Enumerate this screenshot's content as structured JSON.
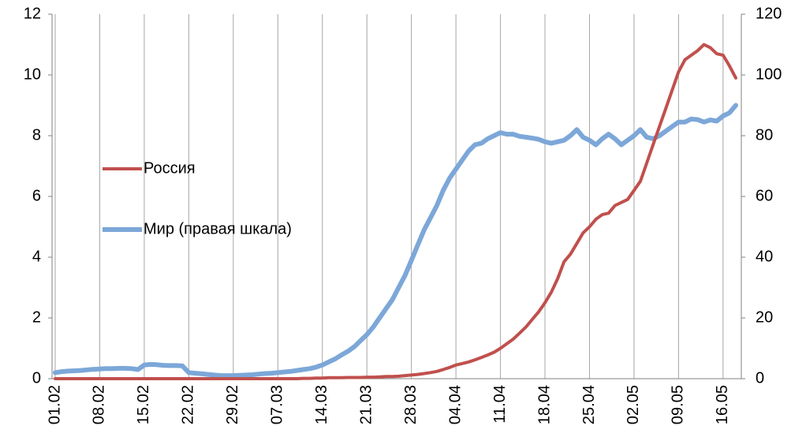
{
  "chart_data": {
    "type": "line",
    "categories": [
      "01.02",
      null,
      null,
      null,
      null,
      null,
      null,
      "08.02",
      null,
      null,
      null,
      null,
      null,
      null,
      "15.02",
      null,
      null,
      null,
      null,
      null,
      null,
      "22.02",
      null,
      null,
      null,
      null,
      null,
      null,
      "29.02",
      null,
      null,
      null,
      null,
      null,
      null,
      "07.03",
      null,
      null,
      null,
      null,
      null,
      null,
      "14.03",
      null,
      null,
      null,
      null,
      null,
      null,
      "21.03",
      null,
      null,
      null,
      null,
      null,
      null,
      "28.03",
      null,
      null,
      null,
      null,
      null,
      null,
      "04.04",
      null,
      null,
      null,
      null,
      null,
      null,
      "11.04",
      null,
      null,
      null,
      null,
      null,
      null,
      "18.04",
      null,
      null,
      null,
      null,
      null,
      null,
      "25.04",
      null,
      null,
      null,
      null,
      null,
      null,
      "02.05",
      null,
      null,
      null,
      null,
      null,
      null,
      "09.05",
      null,
      null,
      null,
      null,
      null,
      null,
      "16.05",
      null,
      null
    ],
    "series": [
      {
        "name": "Россия",
        "color": "#c0504d",
        "axis": "y",
        "values": [
          0,
          0,
          0,
          0,
          0,
          0,
          0,
          0,
          0,
          0,
          0,
          0,
          0,
          0,
          0,
          0,
          0,
          0,
          0,
          0,
          0,
          0,
          0,
          0,
          0,
          0,
          0,
          0,
          0,
          0,
          0,
          0,
          0,
          0,
          0,
          0,
          0,
          0,
          0,
          0.01,
          0.01,
          0.02,
          0.02,
          0.03,
          0.03,
          0.03,
          0.04,
          0.04,
          0.04,
          0.05,
          0.05,
          0.06,
          0.07,
          0.07,
          0.08,
          0.1,
          0.12,
          0.14,
          0.17,
          0.2,
          0.24,
          0.3,
          0.37,
          0.45,
          0.5,
          0.55,
          0.62,
          0.7,
          0.78,
          0.87,
          1.0,
          1.15,
          1.3,
          1.5,
          1.7,
          1.95,
          2.2,
          2.5,
          2.85,
          3.3,
          3.85,
          4.1,
          4.45,
          4.8,
          5.0,
          5.25,
          5.4,
          5.45,
          5.7,
          5.8,
          5.9,
          6.2,
          6.5,
          7.1,
          7.7,
          8.3,
          8.9,
          9.5,
          10.1,
          10.5,
          10.65,
          10.8,
          11.0,
          10.9,
          10.7,
          10.65,
          10.3,
          9.9
        ]
      },
      {
        "name": "Мир (правая шкала)",
        "color": "#7ca7d8",
        "axis": "y2",
        "values": [
          2,
          2.3,
          2.5,
          2.6,
          2.7,
          2.9,
          3.1,
          3.2,
          3.3,
          3.3,
          3.4,
          3.4,
          3.3,
          3.0,
          4.5,
          4.7,
          4.6,
          4.4,
          4.3,
          4.3,
          4.2,
          2.0,
          1.8,
          1.6,
          1.4,
          1.2,
          1.0,
          1.0,
          1.0,
          1.1,
          1.2,
          1.3,
          1.5,
          1.7,
          1.8,
          2.0,
          2.2,
          2.4,
          2.7,
          3.0,
          3.3,
          3.8,
          4.5,
          5.5,
          6.5,
          7.8,
          9.0,
          10.5,
          12.5,
          14.5,
          17,
          20,
          23,
          26,
          30,
          34,
          39,
          44,
          49,
          53,
          57,
          62,
          66,
          69,
          72,
          75,
          77,
          77.5,
          79,
          80,
          81,
          80.5,
          80.5,
          79.8,
          79.5,
          79.2,
          78.8,
          78,
          77.5,
          78,
          78.5,
          80,
          82,
          79.5,
          78.5,
          77,
          79,
          80.5,
          79,
          77,
          78.5,
          80,
          82,
          79.5,
          79,
          80,
          81.5,
          83,
          84.5,
          84.5,
          85.5,
          85.3,
          84.5,
          85.2,
          84.8,
          86.5,
          87.5,
          90
        ]
      }
    ],
    "ylim": [
      0,
      12
    ],
    "yticks": [
      0,
      2,
      4,
      6,
      8,
      10,
      12
    ],
    "y2lim": [
      0,
      120
    ],
    "y2ticks": [
      0,
      20,
      40,
      60,
      80,
      100,
      120
    ],
    "grid": true,
    "legend": "left"
  }
}
